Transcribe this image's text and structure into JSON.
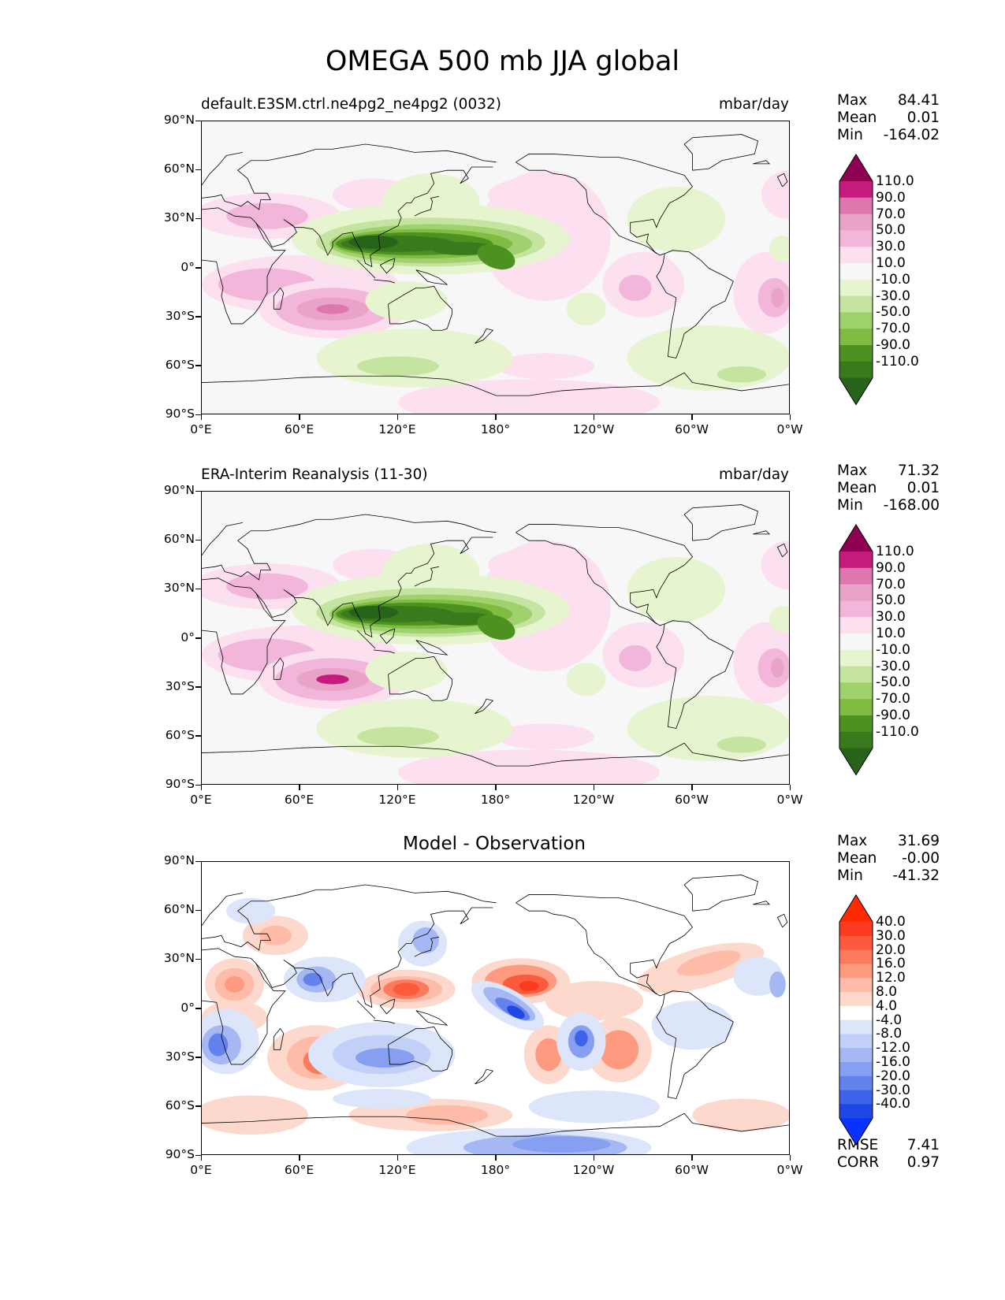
{
  "title": "OMEGA 500 mb JJA global",
  "axes": {
    "lat_labels": [
      "90°N",
      "60°N",
      "30°N",
      "0°",
      "30°S",
      "60°S",
      "90°S"
    ],
    "lon_labels": [
      "0°E",
      "60°E",
      "120°E",
      "180°",
      "120°W",
      "60°W",
      "0°W"
    ]
  },
  "panels": [
    {
      "title_left": "default.E3SM.ctrl.ne4pg2_ne4pg2 (0032)",
      "units": "mbar/day",
      "stats": [
        {
          "label": "Max",
          "value": "84.41"
        },
        {
          "label": "Mean",
          "value": "0.01"
        },
        {
          "label": "Min",
          "value": "-164.02"
        }
      ]
    },
    {
      "title_left": "ERA-Interim Reanalysis (11-30)",
      "units": "mbar/day",
      "stats": [
        {
          "label": "Max",
          "value": "71.32"
        },
        {
          "label": "Mean",
          "value": "0.01"
        },
        {
          "label": "Min",
          "value": "-168.00"
        }
      ]
    },
    {
      "title_center": "Model - Observation",
      "stats": [
        {
          "label": "Max",
          "value": "31.69"
        },
        {
          "label": "Mean",
          "value": "-0.00"
        },
        {
          "label": "Min",
          "value": "-41.32"
        }
      ],
      "extra_stats": [
        {
          "label": "RMSE",
          "value": "7.41"
        },
        {
          "label": "CORR",
          "value": "0.97"
        }
      ]
    }
  ],
  "colorbars": {
    "field": {
      "labels": [
        "110.0",
        "90.0",
        "70.0",
        "50.0",
        "30.0",
        "10.0",
        "-10.0",
        "-30.0",
        "-50.0",
        "-70.0",
        "-90.0",
        "-110.0"
      ],
      "colors": [
        "#8e0152",
        "#c51b7d",
        "#de77ae",
        "#e9a3c9",
        "#f1b6da",
        "#fde0ef",
        "#f7f7f7",
        "#e6f5d0",
        "#c5e4a0",
        "#9fd16c",
        "#7fbc41",
        "#4d9221",
        "#3b7a1c",
        "#276419"
      ]
    },
    "diff": {
      "labels": [
        "40.0",
        "30.0",
        "20.0",
        "16.0",
        "12.0",
        "8.0",
        "4.0",
        "-4.0",
        "-8.0",
        "-12.0",
        "-16.0",
        "-20.0",
        "-30.0",
        "-40.0"
      ],
      "colors": [
        "#ff2a00",
        "#fb3a1e",
        "#fb5a3c",
        "#fc7a5e",
        "#fd9a80",
        "#fdbba8",
        "#fdd8cc",
        "#ffffff",
        "#dde5fb",
        "#c2d0f8",
        "#a6b8f4",
        "#879ff0",
        "#6482ec",
        "#3f63e8",
        "#1e47e3",
        "#0a32ff"
      ]
    }
  }
}
